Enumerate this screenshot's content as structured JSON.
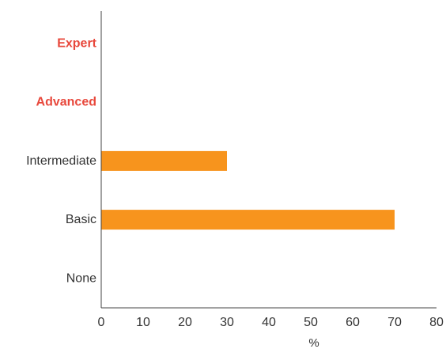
{
  "chart_data": {
    "type": "bar",
    "orientation": "horizontal",
    "categories": [
      "Expert",
      "Advanced",
      "Intermediate",
      "Basic",
      "None"
    ],
    "highlighted_categories": [
      "Expert",
      "Advanced"
    ],
    "values": [
      0,
      0,
      30,
      70,
      0
    ],
    "title": "",
    "xlabel": "%",
    "ylabel": "",
    "xlim": [
      0,
      80
    ],
    "xticks": [
      "0",
      "10",
      "20",
      "30",
      "40",
      "50",
      "60",
      "70",
      "80"
    ],
    "grid": false,
    "legend": "none",
    "colors": {
      "bar": "#f7941d",
      "highlight_label": "#e8483c",
      "label": "#333333",
      "axis": "#444444"
    }
  }
}
